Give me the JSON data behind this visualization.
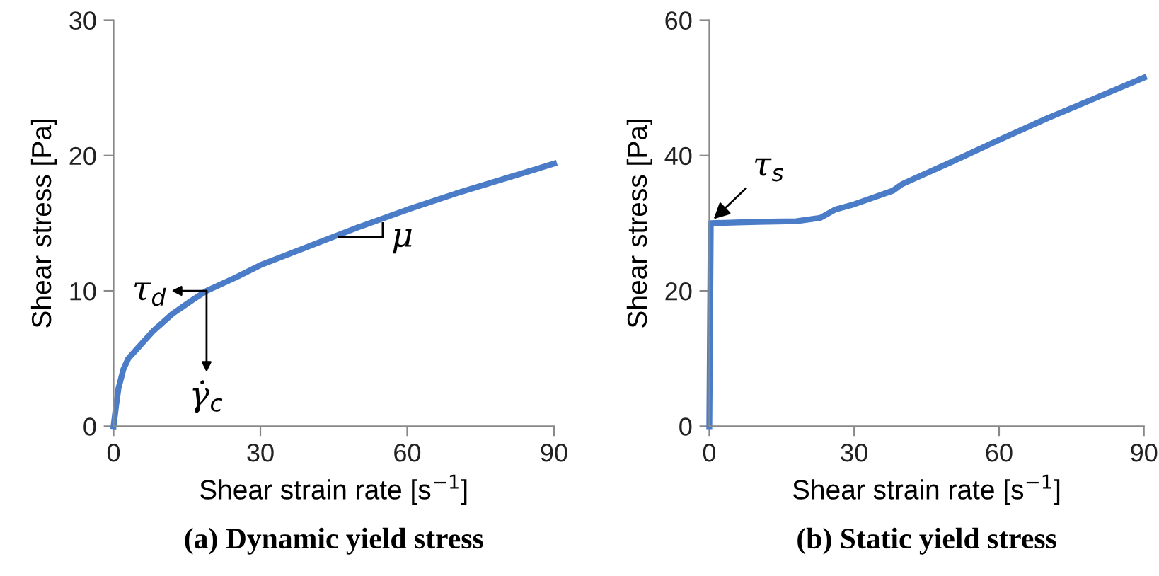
{
  "chart_data": [
    {
      "type": "line",
      "title": "(a) Dynamic yield stress",
      "xlabel": "Shear strain rate [s$^{−1}$]",
      "ylabel": "Shear stress [Pa]",
      "x": [
        0,
        0.5,
        1,
        2,
        3,
        5,
        8,
        12,
        16,
        19,
        25,
        30,
        40,
        50,
        60,
        70,
        80,
        90
      ],
      "series": [
        {
          "color": "#4a7cc7",
          "values": [
            0,
            1.5,
            2.8,
            4.2,
            5,
            5.8,
            7,
            8.3,
            9.3,
            10,
            11,
            11.9,
            13.3,
            14.7,
            16,
            17.2,
            18.3,
            19.4
          ]
        }
      ],
      "xlim": [
        0,
        90
      ],
      "ylim": [
        0,
        30
      ],
      "xticks": [
        0,
        30,
        60,
        90
      ],
      "yticks": [
        0,
        10,
        20,
        30
      ],
      "grid": false,
      "legend": false,
      "annotations": [
        {
          "text": "τ$_{d}$",
          "x": 19,
          "y": 10
        },
        {
          "text": "γ̇$_{c}$",
          "x": 19,
          "y": 10
        },
        {
          "text": "μ",
          "x": 55,
          "y": 15
        }
      ]
    },
    {
      "type": "line",
      "title": "(b) Static yield stress",
      "xlabel": "Shear strain rate [s$^{−1}$]",
      "ylabel": "Shear stress [Pa]",
      "x": [
        0,
        0.3,
        10,
        18,
        23,
        26,
        30,
        38,
        40,
        50,
        60,
        70,
        80,
        90
      ],
      "series": [
        {
          "color": "#4a7cc7",
          "values": [
            0,
            30,
            30.2,
            30.3,
            30.8,
            32,
            32.8,
            34.8,
            35.8,
            39,
            42.3,
            45.5,
            48.5,
            51.5
          ]
        }
      ],
      "xlim": [
        0,
        90
      ],
      "ylim": [
        0,
        60
      ],
      "xticks": [
        0,
        30,
        60,
        90
      ],
      "yticks": [
        0,
        20,
        40,
        60
      ],
      "grid": false,
      "legend": false,
      "annotations": [
        {
          "text": "τ$_{s}$",
          "x": 0,
          "y": 30
        }
      ]
    }
  ]
}
